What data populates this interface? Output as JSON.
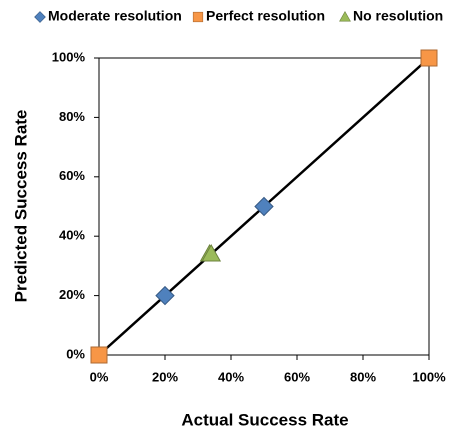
{
  "chart_data": {
    "type": "scatter",
    "xlabel": "Actual Success Rate",
    "ylabel": "Predicted Success Rate",
    "xlim": [
      0,
      100
    ],
    "ylim": [
      0,
      100
    ],
    "xticks": [
      {
        "value": 0,
        "label": "0%"
      },
      {
        "value": 20,
        "label": "20%"
      },
      {
        "value": 40,
        "label": "40%"
      },
      {
        "value": 60,
        "label": "60%"
      },
      {
        "value": 80,
        "label": "80%"
      },
      {
        "value": 100,
        "label": "100%"
      }
    ],
    "yticks": [
      {
        "value": 0,
        "label": "0%"
      },
      {
        "value": 20,
        "label": "20%"
      },
      {
        "value": 40,
        "label": "40%"
      },
      {
        "value": 60,
        "label": "60%"
      },
      {
        "value": 80,
        "label": "80%"
      },
      {
        "value": 100,
        "label": "100%"
      }
    ],
    "grid": false,
    "legend": "top",
    "series": [
      {
        "name": "Moderate resolution",
        "marker": "diamond",
        "color": "#4f81bd",
        "x": [
          20,
          50
        ],
        "values": [
          20,
          50
        ]
      },
      {
        "name": "Perfect resolution",
        "marker": "square",
        "color": "#f79646",
        "connect": true,
        "x": [
          0,
          100
        ],
        "values": [
          0,
          100
        ]
      },
      {
        "name": "No resolution",
        "marker": "triangle",
        "color": "#9bbb59",
        "x": [
          33.5,
          34
        ],
        "values": [
          34,
          34
        ]
      }
    ]
  }
}
